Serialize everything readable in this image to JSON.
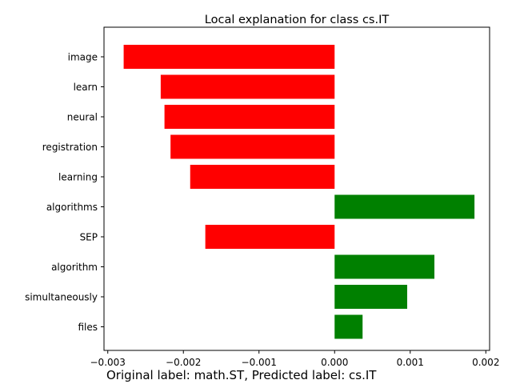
{
  "chart_data": {
    "type": "bar",
    "orientation": "horizontal",
    "title": "Local explanation for class cs.IT",
    "categories": [
      "image",
      "learn",
      "neural",
      "registration",
      "learning",
      "algorithms",
      "SEP",
      "algorithm",
      "simultaneously",
      "files"
    ],
    "values": [
      -0.00279,
      -0.0023,
      -0.00225,
      -0.00217,
      -0.00191,
      0.00185,
      -0.00171,
      0.00132,
      0.00096,
      0.00037
    ],
    "xlim": [
      -0.00305,
      0.00205
    ],
    "xticks": [
      -0.003,
      -0.002,
      -0.001,
      0.0,
      0.001,
      0.002
    ],
    "xtick_labels": [
      "−0.003",
      "−0.002",
      "−0.001",
      "0.000",
      "0.001",
      "0.002"
    ],
    "xlabel": "",
    "ylabel": "",
    "grid": false,
    "colors": {
      "positive": "#008000",
      "negative": "#ff0000"
    }
  },
  "caption": "Original label: math.ST, Predicted label: cs.IT"
}
